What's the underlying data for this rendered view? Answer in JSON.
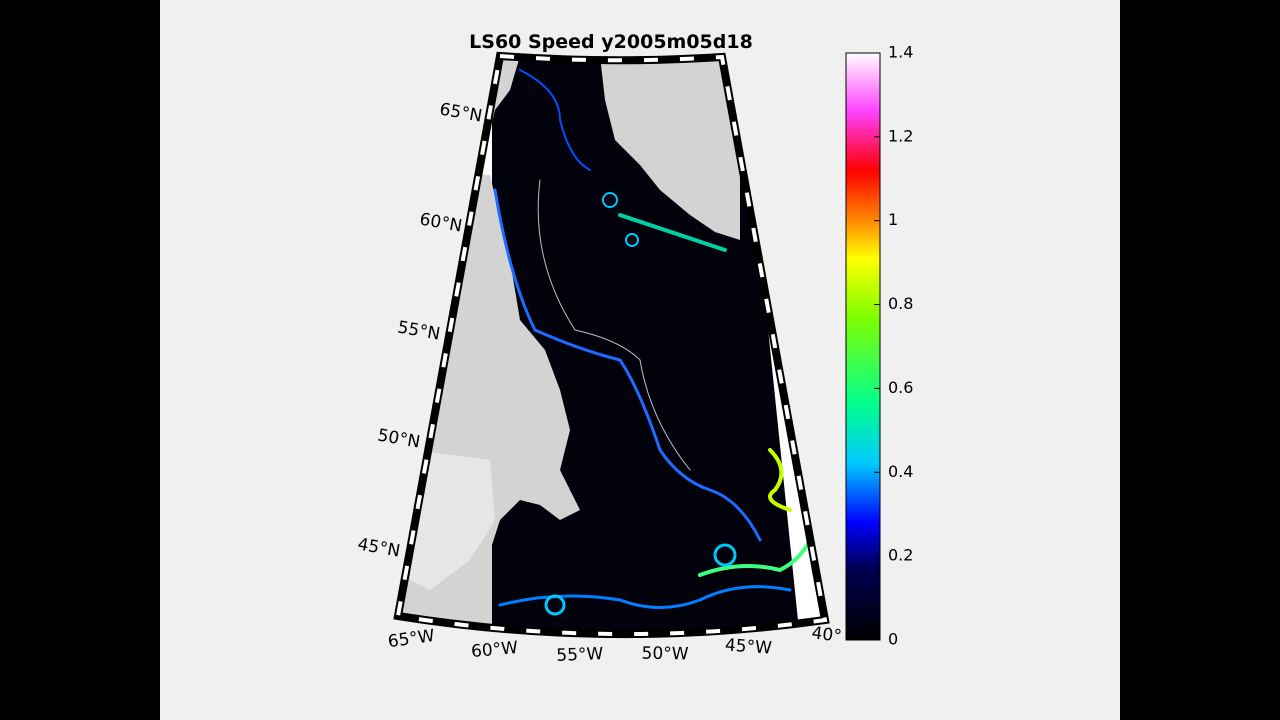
{
  "title": "LS60 Speed y2005m05d18",
  "lat_labels": [
    "65°N",
    "60°N",
    "55°N",
    "50°N",
    "45°N"
  ],
  "lon_labels": [
    "65°W",
    "60°W",
    "55°W",
    "50°W",
    "45°W",
    "40°"
  ],
  "colorbar": {
    "lim": [
      0,
      1.4
    ],
    "ticks": [
      0,
      0.2,
      0.4,
      0.6,
      0.8,
      1,
      1.2,
      1.4
    ]
  }
}
